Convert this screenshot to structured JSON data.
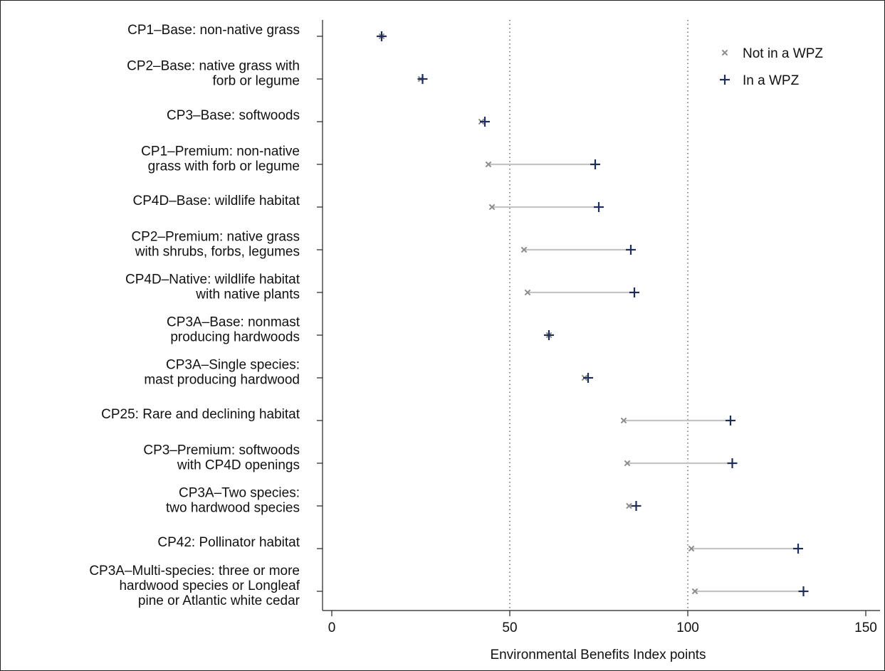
{
  "colors": {
    "not_wpz": "#8c8c8c",
    "in_wpz": "#1f2d5a",
    "connector": "#c4c4c4",
    "reference_line": "#555555",
    "axis": "#222222"
  },
  "chart_data": {
    "type": "scatter",
    "title": "",
    "xlabel": "Environmental Benefits Index points",
    "ylabel": "",
    "xlim": [
      0,
      150
    ],
    "xticks": [
      0,
      50,
      100,
      150
    ],
    "reference_lines_x": [
      50,
      100
    ],
    "grid": false,
    "legend_position": "top-right",
    "categories": [
      [
        "CP1–Base: non-native grass"
      ],
      [
        "CP2–Base: native grass with",
        "forb or legume"
      ],
      [
        "CP3–Base: softwoods"
      ],
      [
        "CP1–Premium: non-native",
        "grass with forb or legume"
      ],
      [
        "CP4D–Base: wildlife habitat"
      ],
      [
        "CP2–Premium: native grass",
        "with shrubs, forbs, legumes"
      ],
      [
        "CP4D–Native: wildlife habitat",
        "with native plants"
      ],
      [
        "CP3A–Base: nonmast",
        "producing hardwoods"
      ],
      [
        "CP3A–Single species:",
        "mast producing hardwood"
      ],
      [
        "CP25: Rare and declining habitat"
      ],
      [
        "CP3–Premium: softwoods",
        "with CP4D openings"
      ],
      [
        "CP3A–Two species:",
        "two hardwood species"
      ],
      [
        "CP42: Pollinator habitat"
      ],
      [
        "CP3A–Multi-species: three or more",
        "hardwood species or  Longleaf",
        "pine or Atlantic white cedar"
      ]
    ],
    "series": [
      {
        "name": "Not in a WPZ",
        "marker": "x",
        "values": [
          14,
          25,
          42,
          44,
          45,
          54,
          55,
          61,
          71,
          82,
          83,
          83.5,
          101,
          102
        ]
      },
      {
        "name": "In a WPZ",
        "marker": "+",
        "values": [
          14,
          25.5,
          43,
          74,
          75,
          84,
          85,
          61,
          72,
          112,
          112.5,
          85.5,
          131,
          132.5
        ]
      }
    ]
  }
}
